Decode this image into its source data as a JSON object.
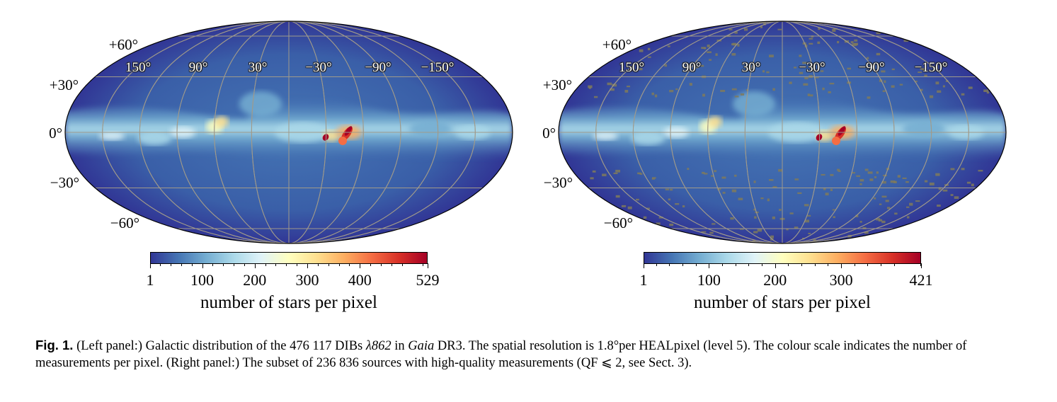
{
  "panels": [
    {
      "id": "left",
      "lat_ticks": [
        "+60°",
        "+30°",
        "0°",
        "−30°",
        "−60°"
      ],
      "lon_ticks": [
        "150°",
        "90°",
        "30°",
        "−30°",
        "−90°",
        "−150°"
      ],
      "colorbar": {
        "ticks": [
          "1",
          "100",
          "200",
          "300",
          "400",
          "529"
        ],
        "min": 1,
        "max": 529,
        "label": "number of stars per pixel"
      }
    },
    {
      "id": "right",
      "lat_ticks": [
        "+60°",
        "+30°",
        "0°",
        "−30°",
        "−60°"
      ],
      "lon_ticks": [
        "150°",
        "90°",
        "30°",
        "−30°",
        "−90°",
        "−150°"
      ],
      "colorbar": {
        "ticks": [
          "1",
          "100",
          "200",
          "300",
          "421"
        ],
        "min": 1,
        "max": 421,
        "label": "number of stars per pixel"
      }
    }
  ],
  "colormap": [
    "#313695",
    "#4575b4",
    "#74add1",
    "#abd9e9",
    "#e0f3f8",
    "#ffffbf",
    "#fee090",
    "#fdae61",
    "#f46d43",
    "#d73027",
    "#a50026"
  ],
  "caption": {
    "fig_label": "Fig. 1.",
    "part1": " (Left panel:) Galactic distribution of the 476 117 DIBs ",
    "lambda": "λ862",
    "part2": " in ",
    "gaia": "Gaia",
    "part3": " DR3. The spatial resolution is 1.8°per HEALpixel (level 5). The colour scale indicates the number of measurements per pixel. (Right panel:) The subset of 236 836 sources with high-quality measurements (QF ⩽ 2, see Sect. 3)."
  }
}
